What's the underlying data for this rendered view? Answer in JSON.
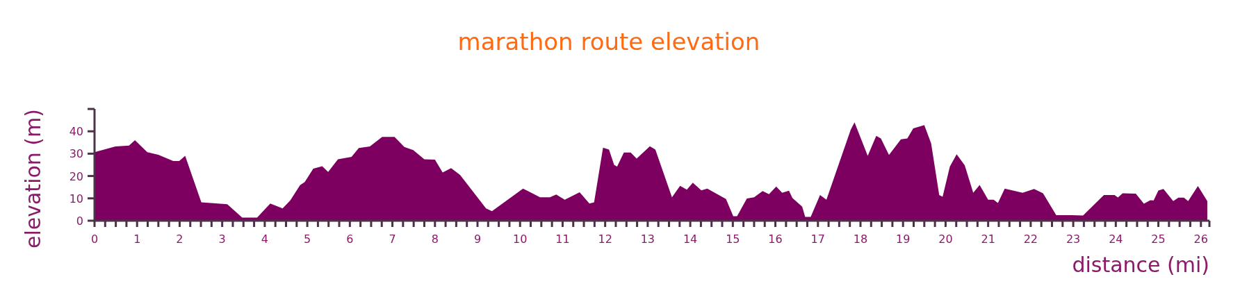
{
  "chart_data": {
    "type": "area",
    "title": "marathon route elevation",
    "xlabel": "distance (mi)",
    "ylabel": "elevation (m)",
    "x": [
      0,
      0.49,
      0.81,
      0.95,
      1.24,
      1.5,
      1.85,
      1.99,
      2.13,
      2.51,
      3.12,
      3.47,
      3.82,
      4.13,
      4.42,
      4.6,
      4.83,
      4.94,
      5.14,
      5.35,
      5.49,
      5.72,
      6.04,
      6.21,
      6.47,
      6.76,
      7.05,
      7.28,
      7.49,
      7.75,
      8.0,
      8.18,
      8.38,
      8.59,
      9.2,
      9.34,
      10.07,
      10.47,
      10.7,
      10.85,
      11.05,
      11.4,
      11.63,
      11.74,
      11.95,
      12.09,
      12.21,
      12.28,
      12.44,
      12.6,
      12.74,
      13.05,
      13.18,
      13.57,
      13.76,
      13.92,
      14.06,
      14.26,
      14.4,
      14.84,
      15.01,
      15.1,
      15.33,
      15.5,
      15.7,
      15.85,
      16.02,
      16.16,
      16.32,
      16.4,
      16.63,
      16.7,
      16.83,
      17.05,
      17.2,
      17.77,
      17.86,
      18.17,
      18.37,
      18.48,
      18.67,
      18.95,
      19.1,
      19.24,
      19.5,
      19.66,
      19.85,
      19.93,
      20.1,
      20.26,
      20.45,
      20.65,
      20.8,
      21.0,
      21.13,
      21.23,
      21.39,
      21.81,
      22.08,
      22.29,
      22.6,
      22.96,
      23.23,
      23.72,
      23.97,
      24.05,
      24.16,
      24.47,
      24.66,
      24.81,
      24.89,
      25.0,
      25.12,
      25.35,
      25.47,
      25.6,
      25.7,
      25.93,
      26.15
    ],
    "series": [
      {
        "color": "#7d0060",
        "values": [
          30.7,
          33.2,
          33.6,
          36,
          30.7,
          29.5,
          26.7,
          26.7,
          29,
          8.2,
          7.4,
          1.4,
          1.4,
          7.7,
          5.5,
          9.1,
          15.9,
          17.3,
          23.3,
          24.4,
          21.8,
          27.5,
          28.6,
          32.5,
          33.2,
          37.5,
          37.5,
          33,
          31.6,
          27.5,
          27.3,
          21.6,
          23.5,
          20.5,
          5.5,
          4.3,
          14.4,
          10.5,
          10.5,
          11.7,
          9.4,
          12.7,
          7.7,
          8.2,
          32.7,
          31.8,
          25,
          24.2,
          30.5,
          30.5,
          27.8,
          33.3,
          31.8,
          10.5,
          15.6,
          13.9,
          17,
          13.6,
          14.4,
          9.7,
          2,
          2,
          9.9,
          10.5,
          13.3,
          11.9,
          15.3,
          12.5,
          13.4,
          10.2,
          6.3,
          1.7,
          1.7,
          11.5,
          9.4,
          40.7,
          44,
          29,
          38,
          36.8,
          29.4,
          36.4,
          36.8,
          41.3,
          42.8,
          34.6,
          11.5,
          10.7,
          24.2,
          29.7,
          24.8,
          12.5,
          16,
          9.4,
          9.4,
          7.9,
          14.4,
          12.5,
          14.2,
          12.3,
          2.5,
          2.5,
          2.3,
          11.5,
          11.5,
          10.4,
          12.3,
          12.1,
          7.6,
          9.2,
          9.1,
          13.5,
          14.2,
          8.8,
          10.3,
          10.3,
          8.8,
          15.5,
          8.8
        ]
      }
    ],
    "xlim": [
      0,
      26.2
    ],
    "ylim": [
      0,
      50
    ],
    "yticks": [
      0,
      10,
      20,
      30,
      40,
      {
        "value": 50,
        "label": null
      }
    ],
    "xticks": [
      0,
      {
        "value": 0.25,
        "label": null
      },
      {
        "value": 0.5,
        "label": null
      },
      {
        "value": 0.75,
        "label": null
      },
      1,
      {
        "value": 1.25,
        "label": null
      },
      {
        "value": 1.5,
        "label": null
      },
      {
        "value": 1.75,
        "label": null
      },
      2,
      {
        "value": 2.25,
        "label": null
      },
      {
        "value": 2.5,
        "label": null
      },
      {
        "value": 2.75,
        "label": null
      },
      3,
      {
        "value": 3.25,
        "label": null
      },
      {
        "value": 3.5,
        "label": null
      },
      {
        "value": 3.75,
        "label": null
      },
      4,
      {
        "value": 4.25,
        "label": null
      },
      {
        "value": 4.5,
        "label": null
      },
      {
        "value": 4.75,
        "label": null
      },
      5,
      {
        "value": 5.25,
        "label": null
      },
      {
        "value": 5.5,
        "label": null
      },
      {
        "value": 5.75,
        "label": null
      },
      6,
      {
        "value": 6.25,
        "label": null
      },
      {
        "value": 6.5,
        "label": null
      },
      {
        "value": 6.75,
        "label": null
      },
      7,
      {
        "value": 7.25,
        "label": null
      },
      {
        "value": 7.5,
        "label": null
      },
      {
        "value": 7.75,
        "label": null
      },
      8,
      {
        "value": 8.25,
        "label": null
      },
      {
        "value": 8.5,
        "label": null
      },
      {
        "value": 8.75,
        "label": null
      },
      9,
      {
        "value": 9.25,
        "label": null
      },
      {
        "value": 9.5,
        "label": null
      },
      {
        "value": 9.75,
        "label": null
      },
      10,
      {
        "value": 10.25,
        "label": null
      },
      {
        "value": 10.5,
        "label": null
      },
      {
        "value": 10.75,
        "label": null
      },
      11,
      {
        "value": 11.25,
        "label": null
      },
      {
        "value": 11.5,
        "label": null
      },
      {
        "value": 11.75,
        "label": null
      },
      12,
      {
        "value": 12.25,
        "label": null
      },
      {
        "value": 12.5,
        "label": null
      },
      {
        "value": 12.75,
        "label": null
      },
      13,
      {
        "value": 13.25,
        "label": null
      },
      {
        "value": 13.5,
        "label": null
      },
      {
        "value": 13.75,
        "label": null
      },
      14,
      {
        "value": 14.25,
        "label": null
      },
      {
        "value": 14.5,
        "label": null
      },
      {
        "value": 14.75,
        "label": null
      },
      15,
      {
        "value": 15.25,
        "label": null
      },
      {
        "value": 15.5,
        "label": null
      },
      {
        "value": 15.75,
        "label": null
      },
      16,
      {
        "value": 16.25,
        "label": null
      },
      {
        "value": 16.5,
        "label": null
      },
      {
        "value": 16.75,
        "label": null
      },
      17,
      {
        "value": 17.25,
        "label": null
      },
      {
        "value": 17.5,
        "label": null
      },
      {
        "value": 17.75,
        "label": null
      },
      18,
      {
        "value": 18.25,
        "label": null
      },
      {
        "value": 18.5,
        "label": null
      },
      {
        "value": 18.75,
        "label": null
      },
      19,
      {
        "value": 19.25,
        "label": null
      },
      {
        "value": 19.5,
        "label": null
      },
      {
        "value": 19.75,
        "label": null
      },
      20,
      {
        "value": 20.25,
        "label": null
      },
      {
        "value": 20.5,
        "label": null
      },
      {
        "value": 20.75,
        "label": null
      },
      21,
      {
        "value": 21.25,
        "label": null
      },
      {
        "value": 21.5,
        "label": null
      },
      {
        "value": 21.75,
        "label": null
      },
      22,
      {
        "value": 22.25,
        "label": null
      },
      {
        "value": 22.5,
        "label": null
      },
      {
        "value": 22.75,
        "label": null
      },
      23,
      {
        "value": 23.25,
        "label": null
      },
      {
        "value": 23.5,
        "label": null
      },
      {
        "value": 23.75,
        "label": null
      },
      24,
      {
        "value": 24.25,
        "label": null
      },
      {
        "value": 24.5,
        "label": null
      },
      {
        "value": 24.75,
        "label": null
      },
      25,
      {
        "value": 25.25,
        "label": null
      },
      {
        "value": 25.5,
        "label": null
      },
      {
        "value": 25.75,
        "label": null
      },
      26,
      {
        "value": 26.2,
        "label": null
      }
    ]
  }
}
